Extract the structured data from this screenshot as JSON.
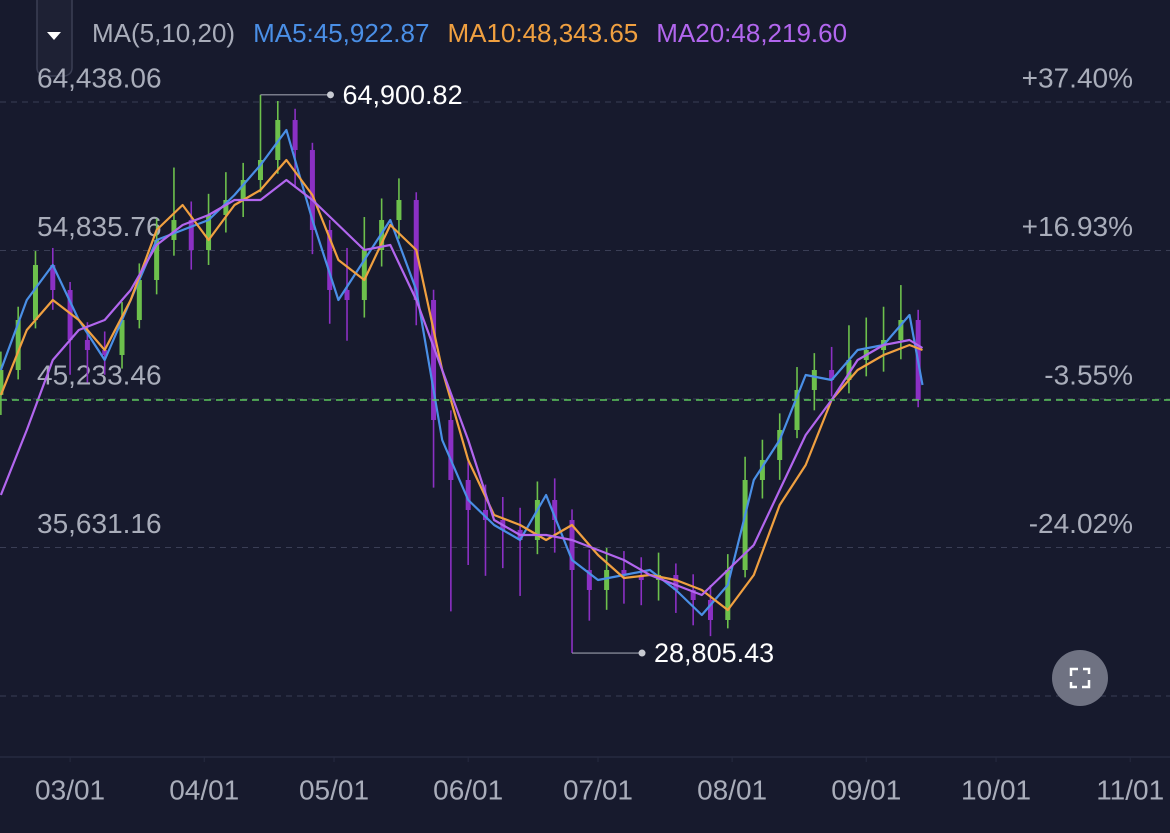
{
  "chart_data": {
    "type": "candlestick",
    "legend_title": "MA(5,10,20)",
    "xlim": [
      -16.2,
      254.2
    ],
    "xticks": [
      {
        "value": 0,
        "label": "03/01"
      },
      {
        "value": 31,
        "label": "04/01"
      },
      {
        "value": 61,
        "label": "05/01"
      },
      {
        "value": 92,
        "label": "06/01"
      },
      {
        "value": 122,
        "label": "07/01"
      },
      {
        "value": 153,
        "label": "08/01"
      },
      {
        "value": 184,
        "label": "09/01"
      },
      {
        "value": 214,
        "label": "10/01"
      },
      {
        "value": 245,
        "label": "11/01"
      }
    ],
    "ylim": [
      22214,
      71033
    ],
    "yticks": [
      {
        "value": 64438.06,
        "label": "64,438.06"
      },
      {
        "value": 54835.76,
        "label": "54,835.76"
      },
      {
        "value": 45233.46,
        "label": "45,233.46"
      },
      {
        "value": 35631.16,
        "label": "35,631.16"
      }
    ],
    "y2lim": [
      -52.63,
      51.46
    ],
    "y2ticks": [
      {
        "value": 37.4,
        "label": "+37.40%"
      },
      {
        "value": 16.93,
        "label": "+16.93%"
      },
      {
        "value": -3.55,
        "label": "-3.55%"
      },
      {
        "value": -24.02,
        "label": "-24.02%"
      }
    ],
    "grid": true,
    "last_price_line": true,
    "last_price_color": "#5cc45c",
    "up_color": "#6dc04c",
    "down_color": "#8b30c4",
    "candles": {
      "x": [
        -16,
        -12,
        -8,
        -4,
        0,
        4,
        8,
        12,
        16,
        20,
        24,
        28,
        32,
        36,
        40,
        44,
        48,
        52,
        56,
        60,
        64,
        68,
        72,
        76,
        80,
        84,
        88,
        92,
        96,
        100,
        104,
        108,
        112,
        116,
        120,
        124,
        128,
        132,
        136,
        140,
        144,
        148,
        152,
        156,
        160,
        164,
        168,
        172,
        176,
        180,
        184,
        188,
        192,
        196
      ],
      "open": [
        45500,
        47108,
        50341,
        53897,
        52281,
        49048,
        48401,
        48078,
        50341,
        52928,
        55514,
        56807,
        54867,
        57130,
        58100,
        59394,
        60687,
        63273,
        61333,
        56161,
        52281,
        51634,
        54867,
        56807,
        58100,
        51634,
        43875,
        39996,
        38056,
        37409,
        36763,
        36116,
        38702,
        37409,
        34176,
        32883,
        34176,
        33853,
        33530,
        33853,
        32883,
        32236,
        30943,
        34176,
        39996,
        41289,
        43229,
        45815,
        47108,
        46462,
        47755,
        48401,
        49048,
        50341
      ],
      "high": [
        48300,
        51200,
        54800,
        55000,
        52800,
        50200,
        49600,
        51500,
        54000,
        56900,
        60200,
        58000,
        58500,
        59900,
        60500,
        64900.82,
        64500,
        64000,
        61800,
        56800,
        55000,
        57000,
        58200,
        59500,
        58600,
        52300,
        44500,
        41200,
        39700,
        38900,
        38200,
        39900,
        40100,
        38100,
        35500,
        35600,
        35400,
        35000,
        35300,
        34600,
        33900,
        33200,
        35200,
        41500,
        42600,
        44300,
        47300,
        48200,
        48600,
        50000,
        50500,
        51200,
        52600,
        51000
      ],
      "low": [
        44200,
        46500,
        49800,
        51000,
        46800,
        46300,
        46800,
        47200,
        49800,
        52000,
        54500,
        53600,
        53900,
        56000,
        57000,
        58600,
        59800,
        58900,
        54600,
        50100,
        49000,
        50500,
        53800,
        55600,
        50000,
        39500,
        31500,
        34500,
        33800,
        34300,
        32500,
        35200,
        35300,
        28805.43,
        30900,
        31600,
        32000,
        31900,
        32200,
        31400,
        30600,
        29900,
        30400,
        33700,
        38800,
        40000,
        42700,
        44500,
        45400,
        45600,
        46700,
        47000,
        47800,
        44700
      ],
      "close": [
        47108,
        50341,
        53897,
        52281,
        49048,
        48401,
        48078,
        50341,
        52928,
        55514,
        56807,
        54867,
        57130,
        58100,
        59394,
        60687,
        63273,
        61333,
        56161,
        52281,
        51634,
        54867,
        56807,
        58100,
        51634,
        43875,
        39996,
        38056,
        37409,
        36763,
        36116,
        38702,
        37409,
        34176,
        32883,
        34176,
        33853,
        33530,
        33853,
        32883,
        32236,
        30943,
        34176,
        39996,
        41289,
        43229,
        45815,
        47108,
        46462,
        47755,
        48401,
        49048,
        50341,
        45168
      ]
    },
    "x": [
      -16,
      -10,
      -4,
      2,
      8,
      14,
      20,
      26,
      32,
      38,
      44,
      50,
      56,
      62,
      68,
      74,
      80,
      86,
      92,
      98,
      104,
      110,
      116,
      122,
      128,
      134,
      140,
      146,
      152,
      158,
      164,
      170,
      176,
      182,
      188,
      194,
      197
    ],
    "series": [
      {
        "name": "MA5:45,922.87",
        "color": "#4a8fe6",
        "values": [
          47108,
          51634,
          53897,
          50341,
          47755,
          51634,
          55514,
          56161,
          56807,
          58424,
          60363,
          62627,
          56807,
          51634,
          54221,
          56807,
          52281,
          42582,
          38702,
          37086,
          36116,
          39026,
          34823,
          33530,
          33853,
          34176,
          32883,
          31266,
          33206,
          39996,
          42582,
          46785,
          46462,
          48401,
          48725,
          50664,
          46138
        ]
      },
      {
        "name": "MA10:48,343.65",
        "color": "#f0a040",
        "values": [
          45492,
          49695,
          51634,
          50341,
          48401,
          51634,
          56161,
          57777,
          55514,
          57777,
          58747,
          60687,
          58424,
          54221,
          52928,
          56484,
          54867,
          47108,
          41289,
          37732,
          37086,
          36116,
          37086,
          35146,
          33659,
          33853,
          33530,
          32883,
          31590,
          33853,
          38379,
          40965,
          45168,
          47108,
          48078,
          48725,
          48401
        ]
      },
      {
        "name": "MA20:48,219.60",
        "color": "#b266ee",
        "values": [
          39026,
          43229,
          47755,
          49695,
          50341,
          52281,
          55191,
          56484,
          57130,
          58100,
          58100,
          59394,
          58100,
          56484,
          54867,
          55191,
          51634,
          47108,
          42582,
          37409,
          36439,
          36439,
          36116,
          35469,
          34823,
          33853,
          33206,
          32560,
          34176,
          35793,
          39349,
          42905,
          45168,
          47755,
          48725,
          49048,
          48531
        ]
      }
    ],
    "annotations": [
      {
        "label": "64,900.82",
        "x": 44,
        "y": 64900.82
      },
      {
        "label": "28,805.43",
        "x": 116,
        "y": 28805.43
      }
    ]
  }
}
